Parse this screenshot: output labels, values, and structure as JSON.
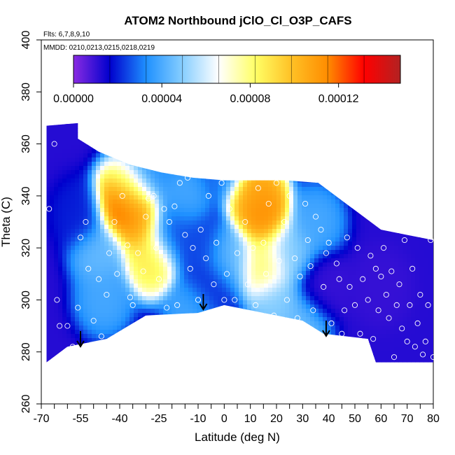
{
  "chart_data": {
    "type": "heatmap",
    "title": "ATOM2 Northbound jClO_Cl_O3P_CAFS",
    "subtitle_flights": "Flts: 6,7,8,9,10",
    "subtitle_dates": "MMDD: 0210,0213,0215,0218,0219",
    "xlabel": "Latitude (deg N)",
    "ylabel": "Theta (C)",
    "xlim": [
      -70,
      80
    ],
    "ylim": [
      260,
      400
    ],
    "x_ticks": [
      -70,
      -55,
      -40,
      -25,
      -10,
      0,
      10,
      20,
      30,
      40,
      50,
      60,
      70,
      80
    ],
    "x_tick_labels": [
      "-70",
      "-55",
      "-40",
      "-25",
      "-10",
      "0",
      "10",
      "20",
      "30",
      "40",
      "50",
      "60",
      "70",
      "80"
    ],
    "y_ticks": [
      260,
      280,
      300,
      320,
      340,
      360,
      380,
      400
    ],
    "y_tick_labels": [
      "260",
      "280",
      "300",
      "320",
      "340",
      "360",
      "380",
      "400"
    ],
    "colorbar": {
      "range": [
        0,
        0.000148
      ],
      "tick_values": [
        0,
        4e-05,
        8e-05,
        0.00012
      ],
      "tick_labels": [
        "0.00000",
        "0.00004",
        "0.00008",
        "0.00012"
      ],
      "colors": [
        "#8a2be2",
        "#0000cd",
        "#1e90ff",
        "#87ceff",
        "#ffffff",
        "#ffff66",
        "#ffc125",
        "#ff8c00",
        "#ff0000",
        "#b22222"
      ]
    },
    "arrows_latitude": [
      -55,
      -8,
      39
    ],
    "coverage_outline": {
      "x": [
        -68,
        -68,
        -56,
        -56,
        -48,
        -36,
        -24,
        -12,
        0,
        12,
        24,
        36,
        48,
        60,
        70,
        80,
        80,
        58,
        55,
        38,
        30,
        10,
        0,
        -10,
        -30,
        -45,
        -60,
        -68
      ],
      "y": [
        276,
        367,
        368,
        362,
        357,
        352,
        349,
        347,
        346,
        346,
        346,
        345,
        336,
        327,
        325,
        323,
        276,
        276,
        285,
        287,
        292,
        296,
        298,
        295,
        294,
        285,
        282,
        276
      ]
    },
    "features": [
      {
        "x": -39,
        "y": 338,
        "value": 0.000145
      },
      {
        "x": -33,
        "y": 330,
        "value": 0.00011
      },
      {
        "x": -28,
        "y": 315,
        "value": 9e-05
      },
      {
        "x": -37,
        "y": 343,
        "value": 6e-05
      },
      {
        "x": -20,
        "y": 326,
        "value": 2.5e-05
      },
      {
        "x": -16,
        "y": 339,
        "value": 4e-05
      },
      {
        "x": -10,
        "y": 320,
        "value": 2.5e-05
      },
      {
        "x": -5,
        "y": 305,
        "value": 2e-05
      },
      {
        "x": 15,
        "y": 333,
        "value": 0.000118
      },
      {
        "x": 15,
        "y": 313,
        "value": 8.5e-05
      },
      {
        "x": 12,
        "y": 342,
        "value": 0.00011
      },
      {
        "x": 2,
        "y": 315,
        "value": 4.5e-05
      },
      {
        "x": 25,
        "y": 318,
        "value": 5e-05
      },
      {
        "x": 35,
        "y": 330,
        "value": 4e-05
      },
      {
        "x": 38,
        "y": 305,
        "value": 1e-05
      },
      {
        "x": -55,
        "y": 333,
        "value": 2e-05
      },
      {
        "x": -48,
        "y": 318,
        "value": 4.5e-05
      },
      {
        "x": -46,
        "y": 300,
        "value": 4e-05
      },
      {
        "x": -28,
        "y": 350,
        "value": 3.5e-05
      },
      {
        "x": 0,
        "y": 352,
        "value": 3e-05
      },
      {
        "x": 30,
        "y": 290,
        "value": 4.5e-05
      },
      {
        "x": -12,
        "y": 296,
        "value": 4e-05
      },
      {
        "x": 60,
        "y": 305,
        "value": 1e-05
      },
      {
        "x": 20,
        "y": 298,
        "value": 5e-05
      }
    ],
    "sample_points": [
      [
        -67,
        335
      ],
      [
        -65,
        360
      ],
      [
        -64,
        300
      ],
      [
        -63,
        290
      ],
      [
        -62,
        278
      ],
      [
        -60,
        290
      ],
      [
        -58,
        282
      ],
      [
        -56,
        297
      ],
      [
        -55,
        324
      ],
      [
        -53,
        330
      ],
      [
        -52,
        312
      ],
      [
        -50,
        292
      ],
      [
        -49,
        277
      ],
      [
        -48,
        308
      ],
      [
        -47,
        286
      ],
      [
        -45,
        302
      ],
      [
        -44,
        318
      ],
      [
        -42,
        330
      ],
      [
        -41,
        310
      ],
      [
        -39,
        340
      ],
      [
        -37,
        321
      ],
      [
        -36,
        301
      ],
      [
        -35,
        298
      ],
      [
        -33,
        318
      ],
      [
        -31,
        311
      ],
      [
        -30,
        332
      ],
      [
        -29,
        339
      ],
      [
        -27,
        340
      ],
      [
        -26,
        320
      ],
      [
        -25,
        308
      ],
      [
        -23,
        335
      ],
      [
        -22,
        297
      ],
      [
        -21,
        330
      ],
      [
        -19,
        336
      ],
      [
        -18,
        298
      ],
      [
        -17,
        345
      ],
      [
        -15,
        325
      ],
      [
        -14,
        347
      ],
      [
        -13,
        312
      ],
      [
        -12,
        320
      ],
      [
        -10,
        300
      ],
      [
        -9,
        327
      ],
      [
        -7,
        316
      ],
      [
        -6,
        340
      ],
      [
        -4,
        306
      ],
      [
        -3,
        322
      ],
      [
        -1,
        345
      ],
      [
        0,
        300
      ],
      [
        1,
        310
      ],
      [
        2,
        335
      ],
      [
        4,
        300
      ],
      [
        5,
        318
      ],
      [
        7,
        290
      ],
      [
        8,
        330
      ],
      [
        9,
        306
      ],
      [
        11,
        320
      ],
      [
        12,
        298
      ],
      [
        13,
        343
      ],
      [
        15,
        322
      ],
      [
        16,
        310
      ],
      [
        17,
        337
      ],
      [
        19,
        294
      ],
      [
        20,
        345
      ],
      [
        21,
        315
      ],
      [
        23,
        330
      ],
      [
        24,
        300
      ],
      [
        25,
        340
      ],
      [
        27,
        316
      ],
      [
        28,
        293
      ],
      [
        29,
        309
      ],
      [
        31,
        337
      ],
      [
        32,
        323
      ],
      [
        33,
        313
      ],
      [
        34,
        296
      ],
      [
        35,
        332
      ],
      [
        37,
        327
      ],
      [
        38,
        305
      ],
      [
        39,
        318
      ],
      [
        40,
        322
      ],
      [
        41,
        291
      ],
      [
        43,
        314
      ],
      [
        44,
        308
      ],
      [
        45,
        287
      ],
      [
        46,
        296
      ],
      [
        47,
        324
      ],
      [
        48,
        305
      ],
      [
        50,
        298
      ],
      [
        51,
        320
      ],
      [
        52,
        287
      ],
      [
        53,
        308
      ],
      [
        55,
        300
      ],
      [
        56,
        317
      ],
      [
        57,
        285
      ],
      [
        58,
        312
      ],
      [
        59,
        296
      ],
      [
        60,
        309
      ],
      [
        61,
        320
      ],
      [
        62,
        302
      ],
      [
        63,
        293
      ],
      [
        64,
        311
      ],
      [
        65,
        278
      ],
      [
        66,
        298
      ],
      [
        67,
        306
      ],
      [
        68,
        289
      ],
      [
        69,
        323
      ],
      [
        70,
        284
      ],
      [
        71,
        298
      ],
      [
        72,
        312
      ],
      [
        73,
        282
      ],
      [
        74,
        291
      ],
      [
        75,
        302
      ],
      [
        76,
        279
      ],
      [
        77,
        284
      ],
      [
        78,
        298
      ],
      [
        79,
        323
      ],
      [
        80,
        278
      ]
    ]
  }
}
